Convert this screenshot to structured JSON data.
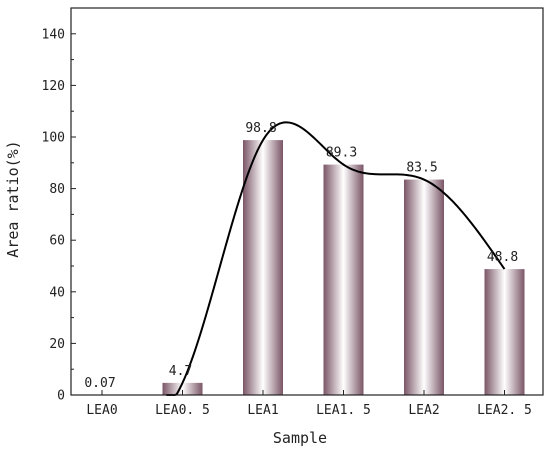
{
  "chart_data": {
    "type": "bar",
    "categories": [
      "LEA0",
      "LEA0.5",
      "LEA1",
      "LEA1.5",
      "LEA2",
      "LEA2.5"
    ],
    "values": [
      0.07,
      4.7,
      98.8,
      89.3,
      83.5,
      48.8
    ],
    "data_labels": [
      "0.07",
      "4.7",
      "98.8",
      "89.3",
      "83.5",
      "48.8"
    ],
    "category_labels": [
      "LEA0",
      "LEA0. 5",
      "LEA1",
      "LEA1. 5",
      "LEA2",
      "LEA2. 5"
    ],
    "xlabel": "Sample",
    "ylabel": "Area ratio(%)",
    "ylim": [
      0,
      150
    ],
    "yticks": [
      0,
      20,
      40,
      60,
      80,
      100,
      120,
      140
    ],
    "grid": false,
    "overlay": "smooth curve through bar tops",
    "colors": {
      "bar_edge": "#7a5566",
      "bar_center": "#ffffff",
      "curve": "#000000",
      "axis": "#222222"
    }
  }
}
